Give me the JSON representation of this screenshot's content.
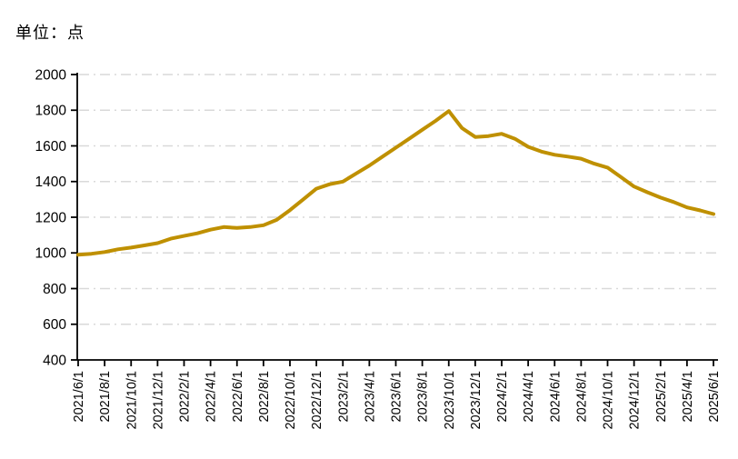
{
  "header": {
    "unit_label": "单位：点"
  },
  "chart_data": {
    "type": "line",
    "title": "",
    "xlabel": "",
    "ylabel": "单位：点",
    "x": [
      "2021/6/1",
      "2021/7/1",
      "2021/8/1",
      "2021/9/1",
      "2021/10/1",
      "2021/11/1",
      "2021/12/1",
      "2022/1/1",
      "2022/2/1",
      "2022/3/1",
      "2022/4/1",
      "2022/5/1",
      "2022/6/1",
      "2022/7/1",
      "2022/8/1",
      "2022/9/1",
      "2022/10/1",
      "2022/11/1",
      "2022/12/1",
      "2023/1/1",
      "2023/2/1",
      "2023/3/1",
      "2023/4/1",
      "2023/5/1",
      "2023/6/1",
      "2023/7/1",
      "2023/8/1",
      "2023/9/1",
      "2023/10/1",
      "2023/11/1",
      "2023/12/1",
      "2024/1/1",
      "2024/2/1",
      "2024/3/1",
      "2024/4/1",
      "2024/5/1",
      "2024/6/1",
      "2024/7/1",
      "2024/8/1",
      "2024/9/1",
      "2024/10/1",
      "2024/11/1",
      "2024/12/1",
      "2025/1/1",
      "2025/2/1",
      "2025/3/1",
      "2025/4/1",
      "2025/5/1",
      "2025/6/1"
    ],
    "values": [
      990,
      995,
      1005,
      1020,
      1030,
      1042,
      1055,
      1080,
      1095,
      1110,
      1130,
      1145,
      1140,
      1145,
      1155,
      1185,
      1240,
      1300,
      1360,
      1385,
      1400,
      1445,
      1490,
      1540,
      1590,
      1640,
      1690,
      1740,
      1795,
      1700,
      1650,
      1655,
      1668,
      1640,
      1595,
      1568,
      1550,
      1540,
      1528,
      1500,
      1478,
      1425,
      1372,
      1340,
      1310,
      1285,
      1255,
      1238,
      1218
    ],
    "xtick_labels": [
      "2021/6/1",
      "2021/8/1",
      "2021/10/1",
      "2021/12/1",
      "2022/2/1",
      "2022/4/1",
      "2022/6/1",
      "2022/8/1",
      "2022/10/1",
      "2022/12/1",
      "2023/2/1",
      "2023/4/1",
      "2023/6/1",
      "2023/8/1",
      "2023/10/1",
      "2023/12/1",
      "2024/2/1",
      "2024/4/1",
      "2024/6/1",
      "2024/8/1",
      "2024/10/1",
      "2024/12/1",
      "2025/2/1",
      "2025/4/1",
      "2025/6/1"
    ],
    "ytick_labels": [
      "400",
      "600",
      "800",
      "1000",
      "1200",
      "1400",
      "1600",
      "1800",
      "2000"
    ],
    "ylim": [
      400,
      2000
    ],
    "ytick_step": 200,
    "grid": "horizontal-dash-dot",
    "legend": "none",
    "line_color": "#BF9000",
    "axis_color": "#000000",
    "grid_color": "#D9D9D9",
    "label_color": "#000000"
  }
}
